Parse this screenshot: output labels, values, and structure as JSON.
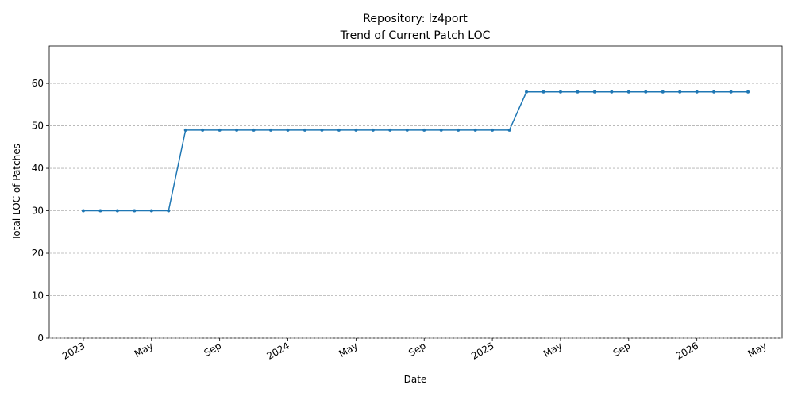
{
  "chart_data": {
    "type": "line",
    "title": "Repository: lz4port",
    "subtitle": "Trend of Current Patch LOC",
    "x_label": "Date",
    "y_label": "Total LOC of Patches",
    "x": [
      "2023-01",
      "2023-02",
      "2023-03",
      "2023-04",
      "2023-05",
      "2023-06",
      "2023-07",
      "2023-08",
      "2023-09",
      "2023-10",
      "2023-11",
      "2023-12",
      "2024-01",
      "2024-02",
      "2024-03",
      "2024-04",
      "2024-05",
      "2024-06",
      "2024-07",
      "2024-08",
      "2024-09",
      "2024-10",
      "2024-11",
      "2024-12",
      "2025-01",
      "2025-02",
      "2025-03",
      "2025-04",
      "2025-05",
      "2025-06",
      "2025-07",
      "2025-08",
      "2025-09",
      "2025-10",
      "2025-11",
      "2025-12",
      "2026-01",
      "2026-02",
      "2026-03",
      "2026-04"
    ],
    "series": [
      {
        "name": "Total LOC",
        "color": "#1f77b4",
        "values": [
          30,
          30,
          30,
          30,
          30,
          30,
          49,
          49,
          49,
          49,
          49,
          49,
          49,
          49,
          49,
          49,
          49,
          49,
          49,
          49,
          49,
          49,
          49,
          49,
          49,
          49,
          58,
          58,
          58,
          58,
          58,
          58,
          58,
          58,
          58,
          58,
          58,
          58,
          58,
          58
        ]
      }
    ],
    "xlim": [
      "2022-11",
      "2026-06"
    ],
    "xticks": [
      {
        "value": "2023-01",
        "label": "2023"
      },
      {
        "value": "2023-05",
        "label": "May"
      },
      {
        "value": "2023-09",
        "label": "Sep"
      },
      {
        "value": "2024-01",
        "label": "2024"
      },
      {
        "value": "2024-05",
        "label": "May"
      },
      {
        "value": "2024-09",
        "label": "Sep"
      },
      {
        "value": "2025-01",
        "label": "2025"
      },
      {
        "value": "2025-05",
        "label": "May"
      },
      {
        "value": "2025-09",
        "label": "Sep"
      },
      {
        "value": "2026-01",
        "label": "2026"
      },
      {
        "value": "2026-05",
        "label": "May"
      }
    ],
    "ylim": [
      0,
      68.8
    ],
    "yticks": [
      0,
      10,
      20,
      30,
      40,
      50,
      60
    ],
    "grid": true
  }
}
